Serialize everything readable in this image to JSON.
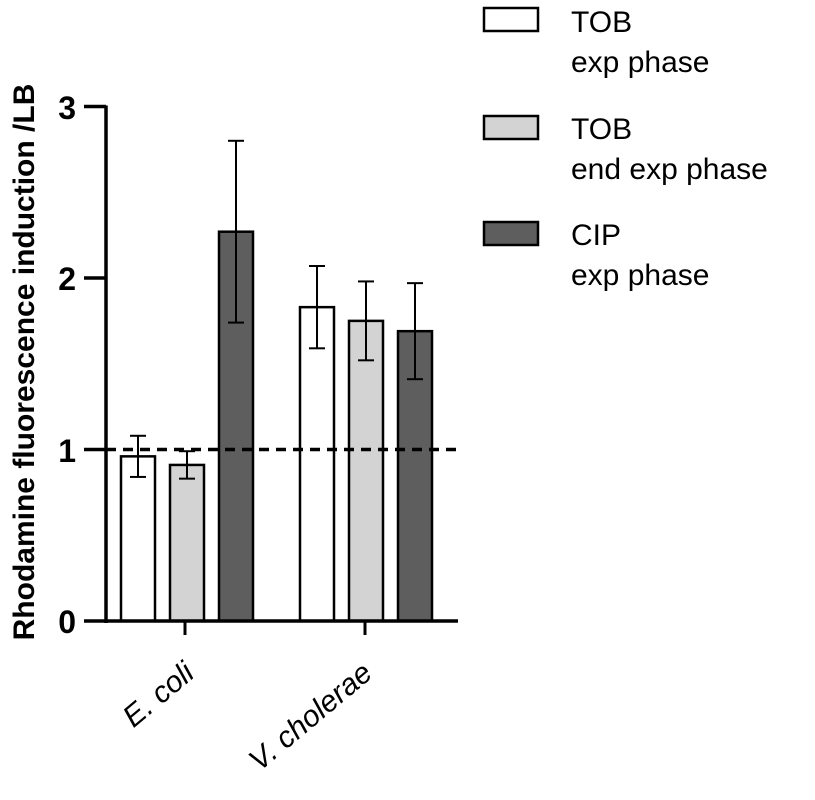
{
  "chart_data": {
    "type": "bar",
    "ylabel": "Rhodamine fluorescence induction /LB",
    "ylim": [
      0,
      3
    ],
    "yticks": [
      "0",
      "1",
      "2",
      "3"
    ],
    "reference_line": {
      "y": 1,
      "style": "dashed"
    },
    "categories": [
      "E. coli",
      "V. cholerae"
    ],
    "series": [
      {
        "name": "TOB",
        "subname": "exp phase",
        "color": "#ffffff",
        "values": [
          0.96,
          1.83
        ],
        "errors": [
          0.12,
          0.24
        ]
      },
      {
        "name": "TOB",
        "subname": "end exp phase",
        "color": "#d3d3d3",
        "values": [
          0.91,
          1.75
        ],
        "errors": [
          0.08,
          0.23
        ]
      },
      {
        "name": "CIP",
        "subname": "exp phase",
        "color": "#5e5e5e",
        "values": [
          2.27,
          1.69
        ],
        "errors": [
          0.53,
          0.28
        ]
      }
    ],
    "legend_position": "top-right",
    "grid": false
  }
}
